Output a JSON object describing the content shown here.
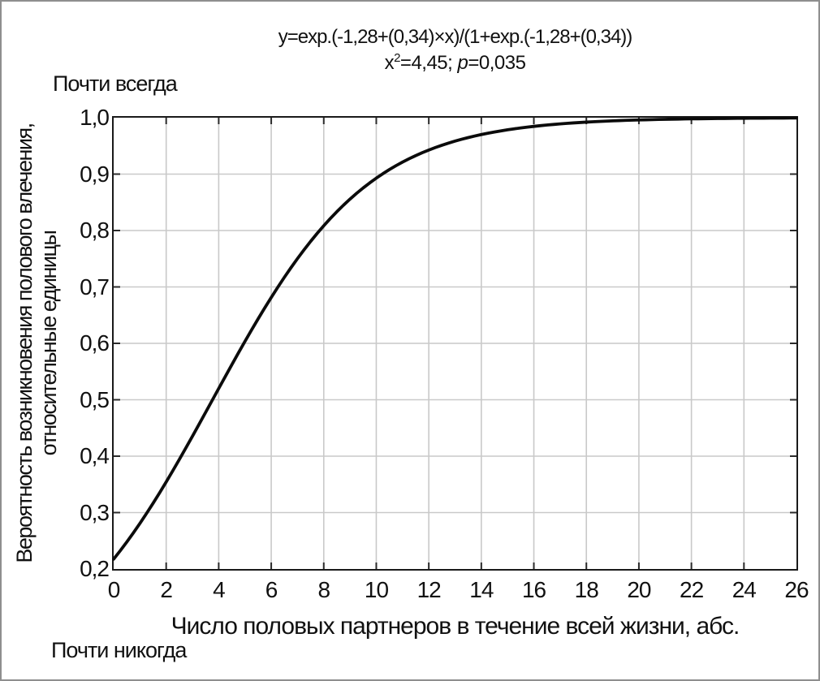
{
  "window": {
    "background": "#ffffff",
    "border_color": "#8f8f8f"
  },
  "header": {
    "formula": "y=exp.(-1,28+(0,34)×x)/(1+exp.(-1,28+(0,34))",
    "stats": {
      "x_base": "x",
      "x_sup": "2",
      "chi_value": "=4,45; ",
      "p_symbol": "p",
      "p_value": "=0,035"
    }
  },
  "annotations": {
    "top_left": "Почти всегда",
    "bottom_left": "Почти никогда"
  },
  "axes": {
    "y_title_line1": "Вероятность возникновения полового влечения,",
    "y_title_line2": "относительные единицы",
    "x_title": "Число половых партнеров в течение всей жизни, абс."
  },
  "chart_data": {
    "type": "line",
    "title": "y=exp.(-1,28+(0,34)×x)/(1+exp.(-1,28+(0,34))",
    "subtitle": "x²=4,45; p=0,035",
    "model": {
      "form": "logistic",
      "intercept": -1.28,
      "slope": 0.34
    },
    "xlabel": "Число половых партнеров в течение всей жизни, абс.",
    "ylabel": "Вероятность возникновения полового влечения, относительные единицы",
    "xlim": [
      0,
      26
    ],
    "ylim": [
      0.2,
      1.0
    ],
    "x_ticks": [
      0,
      2,
      4,
      6,
      8,
      10,
      12,
      14,
      16,
      18,
      20,
      22,
      24,
      26
    ],
    "x_tick_labels": [
      "0",
      "2",
      "4",
      "6",
      "8",
      "10",
      "12",
      "14",
      "16",
      "18",
      "20",
      "22",
      "24",
      "26"
    ],
    "y_ticks": [
      0.2,
      0.3,
      0.4,
      0.5,
      0.6,
      0.7,
      0.8,
      0.9,
      1.0
    ],
    "y_tick_labels": [
      "0,2",
      "0,3",
      "0,4",
      "0,5",
      "0,6",
      "0,7",
      "0,8",
      "0,9",
      "1,0"
    ],
    "grid": true,
    "legend": "none",
    "line_color": "#0b0b0b",
    "grid_color": "#c9c9c9",
    "tick_color": "#2b2b2b",
    "frame_color": "#1a1a1a",
    "curve_points": {
      "x": [
        0,
        2,
        4,
        6,
        8,
        10,
        12,
        14,
        16,
        18,
        20,
        22,
        24,
        26
      ],
      "y": [
        0.218,
        0.354,
        0.52,
        0.681,
        0.809,
        0.893,
        0.943,
        0.97,
        0.985,
        0.992,
        0.996,
        0.998,
        0.999,
        0.9995
      ]
    }
  }
}
